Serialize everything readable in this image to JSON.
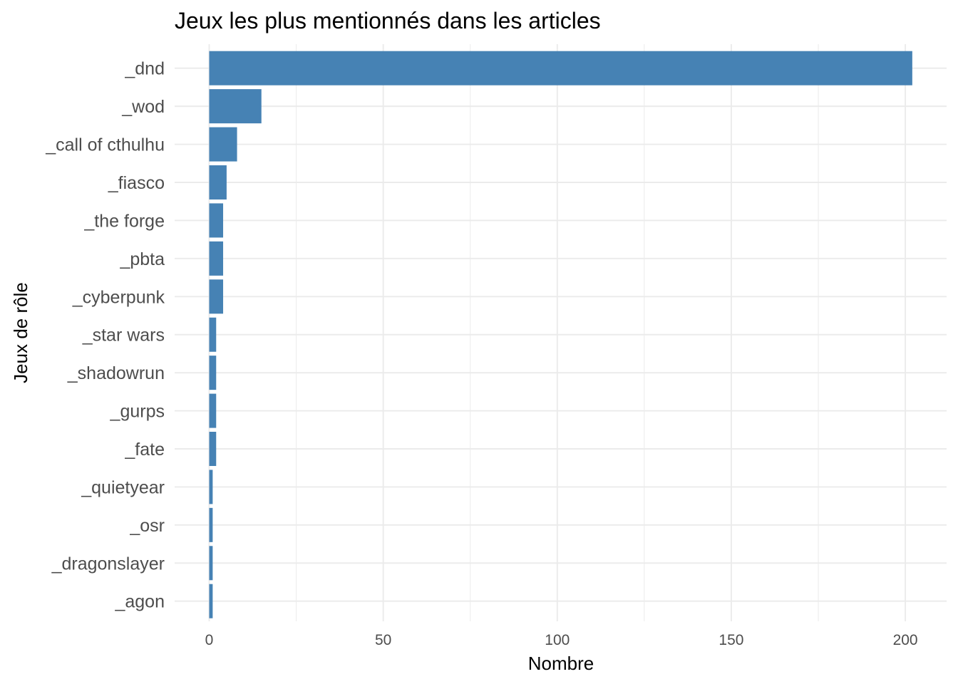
{
  "chart_data": {
    "type": "bar",
    "orientation": "horizontal",
    "title": "Jeux les plus mentionnés dans les articles",
    "xlabel": "Nombre",
    "ylabel": "Jeux de rôle",
    "categories": [
      "_dnd",
      "_wod",
      "_call of cthulhu",
      "_fiasco",
      "_the forge",
      "_pbta",
      "_cyberpunk",
      "_star wars",
      "_shadowrun",
      "_gurps",
      "_fate",
      "_quietyear",
      "_osr",
      "_dragonslayer",
      "_agon"
    ],
    "values": [
      202,
      15,
      8,
      5,
      4,
      4,
      4,
      2,
      2,
      2,
      2,
      1,
      1,
      1,
      1
    ],
    "xlim": [
      0,
      212
    ],
    "xticks": [
      0,
      50,
      100,
      150,
      200
    ],
    "bar_color": "#4682b4",
    "grid": true,
    "theme": "minimal"
  }
}
